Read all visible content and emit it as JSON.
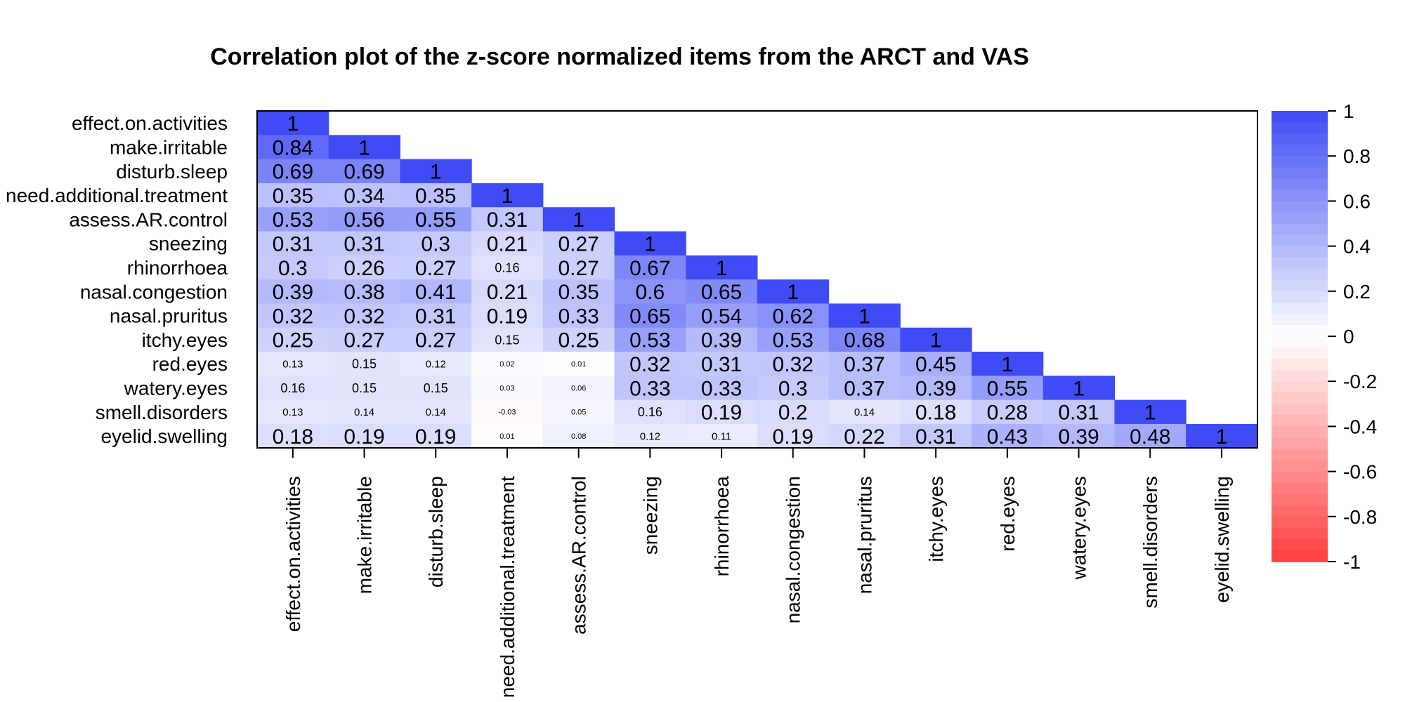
{
  "chart_data": {
    "type": "heatmap",
    "title": "Correlation plot of the z-score normalized items from the ARCT and VAS",
    "variables": [
      "effect.on.activities",
      "make.irritable",
      "disturb.sleep",
      "need.additional.treatment",
      "assess.AR.control",
      "sneezing",
      "rhinorrhoea",
      "nasal.congestion",
      "nasal.pruritus",
      "itchy.eyes",
      "red.eyes",
      "watery.eyes",
      "smell.disorders",
      "eyelid.swelling"
    ],
    "matrix_lower": [
      [
        1
      ],
      [
        0.84,
        1
      ],
      [
        0.69,
        0.69,
        1
      ],
      [
        0.35,
        0.34,
        0.35,
        1
      ],
      [
        0.53,
        0.56,
        0.55,
        0.31,
        1
      ],
      [
        0.31,
        0.31,
        0.3,
        0.21,
        0.27,
        1
      ],
      [
        0.3,
        0.26,
        0.27,
        0.16,
        0.27,
        0.67,
        1
      ],
      [
        0.39,
        0.38,
        0.41,
        0.21,
        0.35,
        0.6,
        0.65,
        1
      ],
      [
        0.32,
        0.32,
        0.31,
        0.19,
        0.33,
        0.65,
        0.54,
        0.62,
        1
      ],
      [
        0.25,
        0.27,
        0.27,
        0.15,
        0.25,
        0.53,
        0.39,
        0.53,
        0.68,
        1
      ],
      [
        0.13,
        0.15,
        0.12,
        0.02,
        0.01,
        0.32,
        0.31,
        0.32,
        0.37,
        0.45,
        1
      ],
      [
        0.16,
        0.15,
        0.15,
        0.03,
        0.06,
        0.33,
        0.33,
        0.3,
        0.37,
        0.39,
        0.55,
        1
      ],
      [
        0.13,
        0.14,
        0.14,
        -0.03,
        0.05,
        0.16,
        0.19,
        0.2,
        0.14,
        0.18,
        0.28,
        0.31,
        1
      ],
      [
        0.18,
        0.19,
        0.19,
        0.01,
        0.08,
        0.12,
        0.11,
        0.19,
        0.22,
        0.31,
        0.43,
        0.39,
        0.48,
        1
      ]
    ],
    "legend": {
      "range": [
        -1,
        1
      ],
      "ticks": [
        1,
        0.8,
        0.6,
        0.4,
        0.2,
        0,
        -0.2,
        -0.4,
        -0.6,
        -0.8,
        -1
      ],
      "tick_labels": [
        "1",
        "0.8",
        "0.6",
        "0.4",
        "0.2",
        "0",
        "-0.2",
        "-0.4",
        "-0.6",
        "-0.8",
        "-1"
      ],
      "placement": "right"
    },
    "colors": {
      "positive": "#3f4cf5",
      "neutral": "#ffffff",
      "negative": "#ff3f3f"
    },
    "grid": false
  }
}
